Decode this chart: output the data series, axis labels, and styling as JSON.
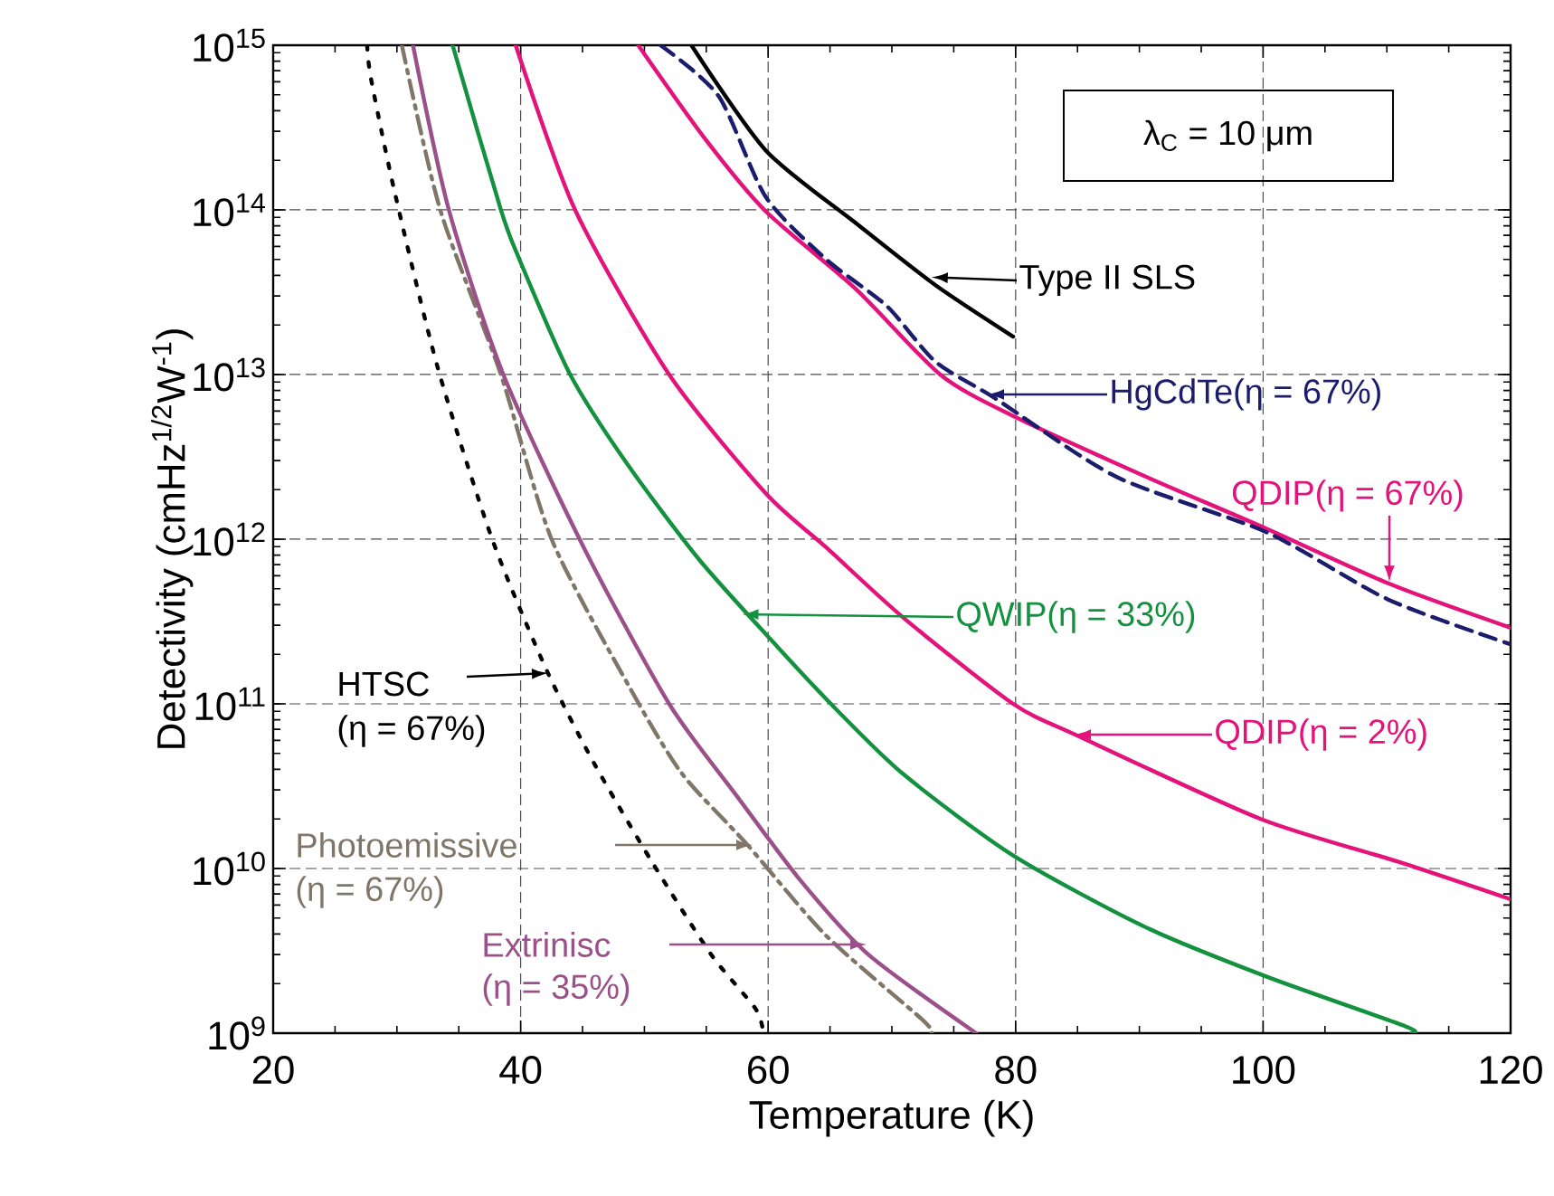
{
  "chart_data": {
    "type": "line",
    "xlabel": "Temperature (K)",
    "ylabel": "Detectivity (cmHz$^{1/2}$W$^{-1}$)",
    "log": "y",
    "grid": true,
    "marker": "none",
    "xlim": [
      20,
      120
    ],
    "xticks": [
      20,
      40,
      60,
      80,
      100,
      120
    ],
    "ylim": [
      1000000000.0,
      1000000000000000.0
    ],
    "yticks": [
      {
        "value": 1000000000.0,
        "label": "10$^{9}$"
      },
      {
        "value": 10000000000.0,
        "label": "10$^{10}$"
      },
      {
        "value": 100000000000.0,
        "label": "10$^{11}$"
      },
      {
        "value": 1000000000000.0,
        "label": "10$^{12}$"
      },
      {
        "value": 10000000000000.0,
        "label": "10$^{13}$"
      },
      {
        "value": 100000000000000.0,
        "label": "10$^{14}$"
      },
      {
        "value": 1000000000000000.0,
        "label": "10$^{15}$"
      }
    ],
    "series": [
      {
        "color": "#000000",
        "line_style": "dotted",
        "x": [
          27.6,
          27.9,
          29.8,
          33.3,
          37.7,
          42.1,
          45.9,
          50.6,
          55.4,
          59.0,
          59.6
        ],
        "values": [
          1000000000000000.0,
          630000000000000.0,
          130000000000000.0,
          11000000000000.0,
          1000000000000.0,
          160000000000.0,
          44000000000.0,
          11000000000.0,
          3000000000.0,
          1400000000.0,
          1000000000.0
        ]
      },
      {
        "color": "#7f7668",
        "line_style": "dashdot",
        "x": [
          30.4,
          33.5,
          38.4,
          42.5,
          48.7,
          53.0,
          58.3,
          64.7,
          72.5,
          73.2
        ],
        "values": [
          1000000000000000.0,
          100000000000000.0,
          10000000000000.0,
          1000000000000.0,
          130000000000.0,
          38000000000.0,
          14000000000.0,
          3900000000.0,
          1200000000.0,
          1000000000.0
        ]
      },
      {
        "color": "#9b5089",
        "line_style": "solid",
        "x": [
          31.3,
          34.2,
          38.6,
          45.1,
          52.0,
          57.4,
          62.7,
          68.1,
          76.8
        ],
        "values": [
          1000000000000000.0,
          100000000000000.0,
          10000000000000.0,
          890000000000.0,
          100000000000.0,
          28000000000.0,
          8300000000.0,
          3000000000.0,
          1000000000.0
        ]
      },
      {
        "color": "#13913f",
        "line_style": "solid",
        "x": [
          34.5,
          38.4,
          39.9,
          44.0,
          48.7,
          54.5,
          60.8,
          65.6,
          71.0,
          79.8,
          90.5,
          100.3,
          111.5,
          112
        ],
        "values": [
          1000000000000000.0,
          100000000000000.0,
          50000000000000.0,
          10000000000000.0,
          2800000000000.0,
          740000000000.0,
          220000000000.0,
          91000000000.0,
          37000000000.0,
          12000000000.0,
          4400000000.0,
          2200000000.0,
          1100000000.0,
          1000000000.0
        ]
      },
      {
        "color": "#e4127b",
        "line_style": "solid",
        "x": [
          39.6,
          44.4,
          52.0,
          59.8,
          64.7,
          71.0,
          79.8,
          85.2,
          99.8,
          110.9,
          120
        ],
        "values": [
          1000000000000000.0,
          100000000000000.0,
          10000000000000.0,
          1900000000000.0,
          890000000000.0,
          330000000000.0,
          100000000000.0,
          63000000000.0,
          20000000000.0,
          11000000000.0,
          6500000000.0
        ]
      },
      {
        "color": "#e4127b",
        "line_style": "solid",
        "x": [
          49.5,
          54.9,
          59.8,
          67.1,
          73.9,
          79.8,
          90.5,
          99.8,
          110.1,
          120
        ],
        "values": [
          1000000000000000.0,
          270000000000000.0,
          98000000000000.0,
          33000000000000.0,
          10000000000000.0,
          5600000000000.0,
          2400000000000.0,
          1200000000000.0,
          540000000000.0,
          290000000000.0
        ]
      },
      {
        "color": "#1c1c6c",
        "line_style": "dashed",
        "x": [
          51.3,
          56.0,
          59.8,
          64.7,
          69.6,
          73.5,
          78.3,
          88.1,
          100.3,
          110.1,
          120
        ],
        "values": [
          1000000000000000.0,
          490000000000000.0,
          120000000000000.0,
          50000000000000.0,
          26000000000000.0,
          12000000000000.0,
          7200000000000.0,
          2400000000000.0,
          1100000000000.0,
          430000000000.0,
          230000000000.0
        ]
      },
      {
        "color": "#000000",
        "line_style": "solid",
        "x": [
          53.8,
          59.8,
          67.1,
          73.5,
          79.8
        ],
        "values": [
          1000000000000000.0,
          230000000000000.0,
          83000000000000.0,
          35000000000000.0,
          17000000000000.0
        ]
      }
    ],
    "annotations": [
      {
        "text": "Type II SLS",
        "x": 73.2,
        "y": 39000000000000.0
      },
      "HgCdTe(η = 67%)",
      {
        "text": "QDIP(η = 67%)",
        "x": 110.2,
        "y": 550000000000.0
      },
      {
        "text": "QWIP(η = 33%)",
        "x": 57.9,
        "y": 350000000000.0
      },
      "QDIP(η = 2%)",
      "HTSC",
      "(η = 67%)",
      "Photoemissive",
      "(η = 67%)",
      "Extrinisc",
      "(η = 35%)",
      "λ$_{C}$ = 10 μm"
    ]
  }
}
